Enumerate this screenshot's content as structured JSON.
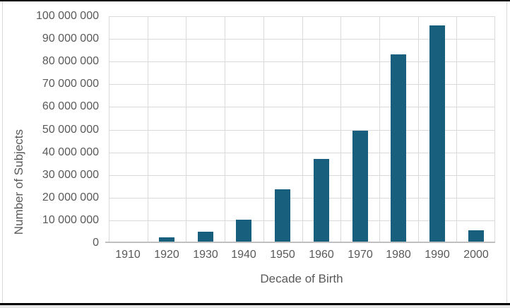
{
  "window": {
    "background": "#FFFFFF",
    "top_border_color": "#000000",
    "bottom_border_color": "#000000",
    "chart_object_border_color": "#D9D9D9"
  },
  "chart_data": {
    "type": "bar",
    "xlabel": "Decade of Birth",
    "ylabel": "Number of Subjects",
    "categories": [
      "1910",
      "1920",
      "1930",
      "1940",
      "1950",
      "1960",
      "1970",
      "1980",
      "1990",
      "2000"
    ],
    "values": [
      0,
      1800000,
      4300000,
      9800000,
      23000000,
      36400000,
      49000000,
      82400000,
      95300000,
      4900000
    ],
    "ylim": [
      0,
      100000000
    ],
    "y_ticks": [
      0,
      10000000,
      20000000,
      30000000,
      40000000,
      50000000,
      60000000,
      70000000,
      80000000,
      90000000,
      100000000
    ],
    "y_tick_labels": [
      "0",
      "10 000 000",
      "20 000 000",
      "30 000 000",
      "40 000 000",
      "50 000 000",
      "60 000 000",
      "70 000 000",
      "80 000 000",
      "90 000 000",
      "100 000 000"
    ],
    "legend": "none",
    "grid": "horizontal-and-vertical",
    "bar_color": "#185F7D",
    "gridline_color": "#D9D9D9",
    "axis_line_color": "#BFBFBF",
    "label_color": "#595959"
  }
}
